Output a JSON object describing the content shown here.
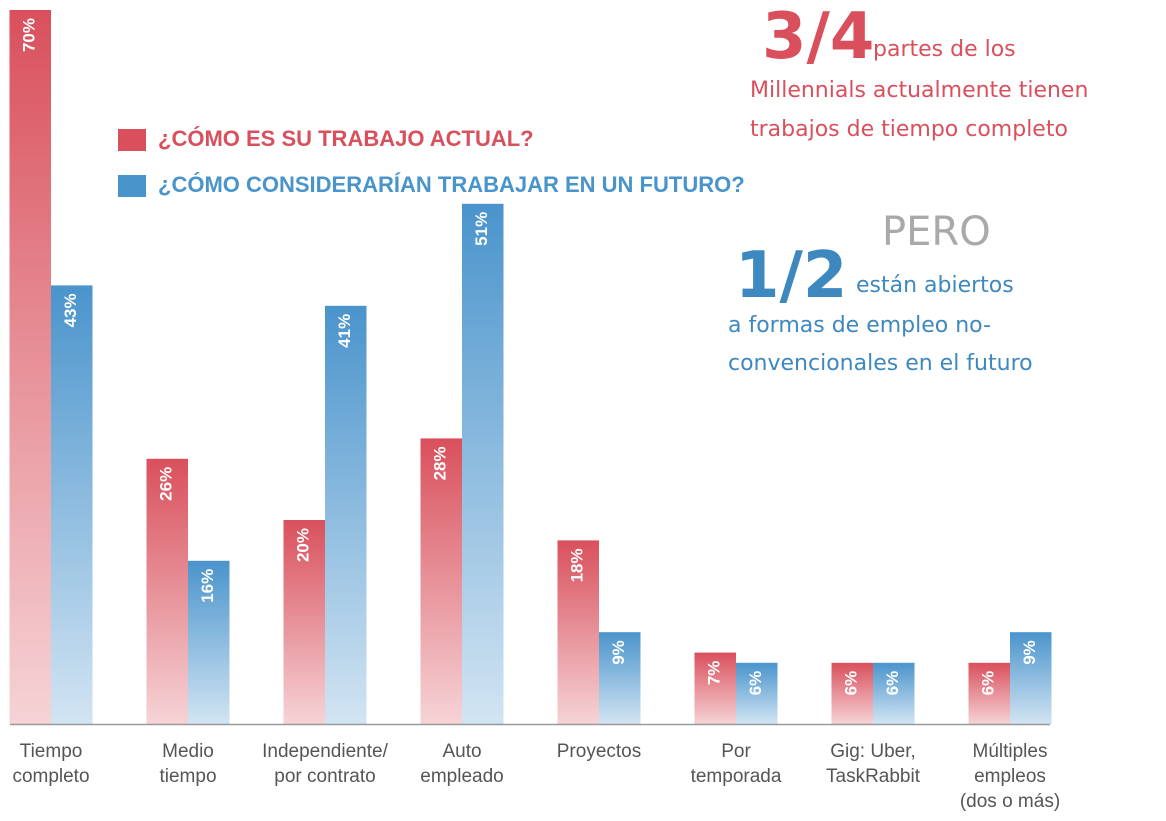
{
  "chart_data": {
    "type": "bar",
    "categories": [
      [
        "Tiempo",
        "completo"
      ],
      [
        "Medio",
        "tiempo"
      ],
      [
        "Independiente/",
        "por contrato"
      ],
      [
        "Auto",
        "empleado"
      ],
      [
        "Proyectos"
      ],
      [
        "Por",
        "temporada"
      ],
      [
        "Gig: Uber,",
        "TaskRabbit"
      ],
      [
        "Múltiples",
        "empleos",
        "(dos o más)"
      ]
    ],
    "series": [
      {
        "name": "¿CÓMO ES SU TRABAJO ACTUAL?",
        "color": "#d9505c",
        "values": [
          70,
          26,
          20,
          28,
          18,
          7,
          6,
          6
        ],
        "value_labels": [
          "70%",
          "26%",
          "20%",
          "28%",
          "18%",
          "7%",
          "6%",
          "6%"
        ]
      },
      {
        "name": "¿CÓMO CONSIDERARÍAN TRABAJAR EN UN FUTURO?",
        "color": "#4a94cc",
        "values": [
          43,
          16,
          41,
          51,
          9,
          6,
          6,
          9
        ],
        "value_labels": [
          "43%",
          "16%",
          "41%",
          "51%",
          "9%",
          "6%",
          "6%",
          "9%"
        ]
      }
    ],
    "ylim": [
      0,
      70
    ],
    "annotations": [
      "3/4",
      "partes de los",
      "Millennials actualmente tienen",
      "trabajos de tiempo completo",
      "PERO",
      "1/2",
      "están abiertos",
      "a formas de empleo no-",
      "convencionales en el futuro"
    ]
  }
}
